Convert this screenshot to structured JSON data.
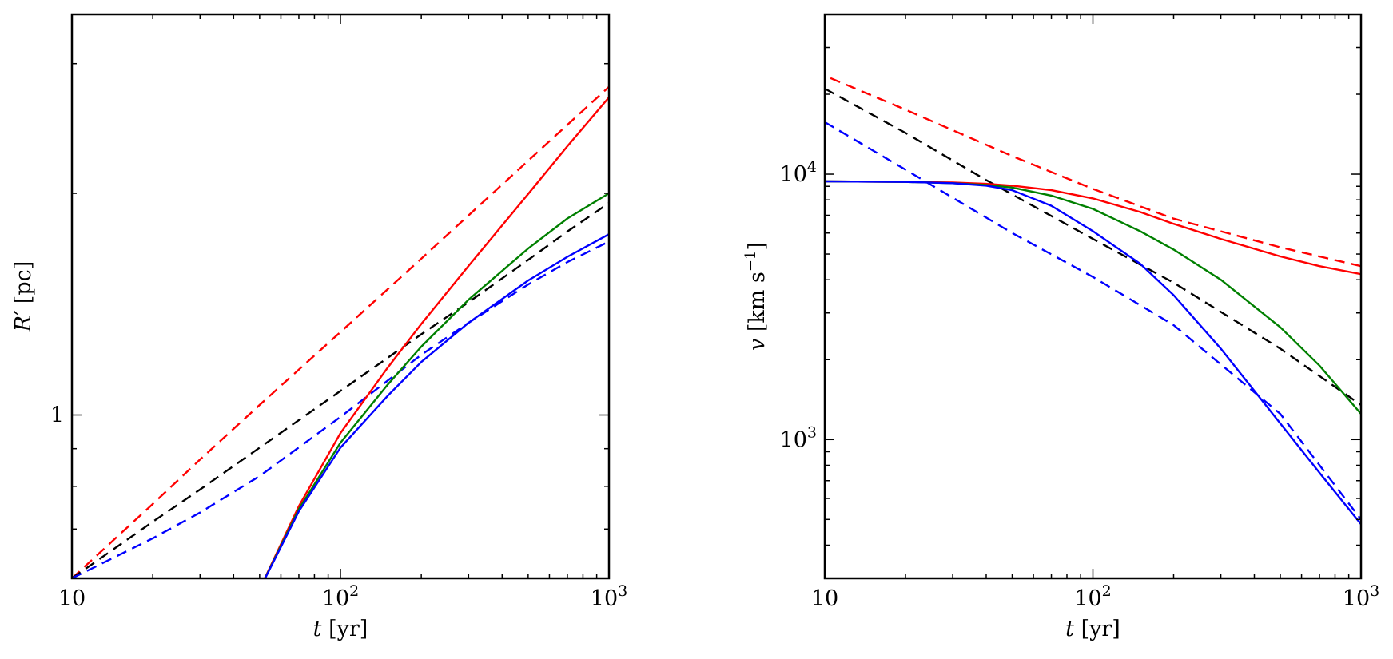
{
  "chart_data": [
    {
      "type": "line",
      "id": "left",
      "xscale": "log",
      "yscale": "log",
      "xlim": [
        10,
        1000
      ],
      "ylim": [
        0.6,
        3.5
      ],
      "xlabel": {
        "var": "t",
        "unit": "[yr]"
      },
      "ylabel": {
        "var": "R′",
        "unit": "[pc]"
      },
      "xticks": [
        {
          "v": 10,
          "base": "10",
          "exp": ""
        },
        {
          "v": 100,
          "base": "10",
          "exp": "2"
        },
        {
          "v": 1000,
          "base": "10",
          "exp": "3"
        }
      ],
      "yticks": [
        {
          "v": 1,
          "base": "1",
          "exp": ""
        }
      ],
      "series": [
        {
          "name": "red dashed",
          "color": "#ff0000",
          "dash": true,
          "x": [
            10,
            20,
            30,
            50,
            100,
            200,
            300,
            500,
            700,
            1000
          ],
          "y": [
            0.6,
            0.757,
            0.87,
            1.032,
            1.296,
            1.63,
            1.867,
            2.215,
            2.478,
            2.79
          ]
        },
        {
          "name": "black dashed",
          "color": "#000000",
          "dash": true,
          "x": [
            10,
            20,
            30,
            50,
            100,
            200,
            300,
            500,
            700,
            1000
          ],
          "y": [
            0.6,
            0.716,
            0.792,
            0.903,
            1.078,
            1.287,
            1.423,
            1.624,
            1.775,
            1.94
          ]
        },
        {
          "name": "blue dashed",
          "color": "#0000ff",
          "dash": true,
          "x": [
            10,
            20,
            30,
            50,
            100,
            200,
            300,
            500,
            700,
            1000
          ],
          "y": [
            0.6,
            0.68,
            0.737,
            0.826,
            0.994,
            1.207,
            1.334,
            1.504,
            1.613,
            1.72
          ]
        },
        {
          "name": "red solid",
          "color": "#ff0000",
          "dash": false,
          "x": [
            50,
            70,
            100,
            150,
            200,
            300,
            500,
            700,
            1000
          ],
          "y": [
            0.58,
            0.752,
            0.945,
            1.16,
            1.329,
            1.594,
            1.996,
            2.318,
            2.7
          ]
        },
        {
          "name": "green solid",
          "color": "#008000",
          "dash": false,
          "x": [
            50,
            70,
            100,
            150,
            200,
            300,
            500,
            700,
            1000
          ],
          "y": [
            0.58,
            0.745,
            0.917,
            1.1,
            1.238,
            1.434,
            1.683,
            1.849,
            2.0
          ]
        },
        {
          "name": "blue solid",
          "color": "#0000ff",
          "dash": false,
          "x": [
            50,
            70,
            100,
            150,
            200,
            300,
            500,
            700,
            1000
          ],
          "y": [
            0.58,
            0.74,
            0.903,
            1.062,
            1.18,
            1.334,
            1.523,
            1.64,
            1.76
          ]
        }
      ]
    },
    {
      "type": "line",
      "id": "right",
      "xscale": "log",
      "yscale": "log",
      "xlim": [
        10,
        1000
      ],
      "ylim": [
        300,
        40000
      ],
      "xlabel": {
        "var": "t",
        "unit": "[yr]"
      },
      "ylabel": {
        "var": "v",
        "unit": "[km s",
        "unitexp": "−1",
        "unitend": "]"
      },
      "xticks": [
        {
          "v": 10,
          "base": "10",
          "exp": ""
        },
        {
          "v": 100,
          "base": "10",
          "exp": "2"
        },
        {
          "v": 1000,
          "base": "10",
          "exp": "3"
        }
      ],
      "yticks": [
        {
          "v": 1000,
          "base": "10",
          "exp": "3"
        },
        {
          "v": 10000,
          "base": "10",
          "exp": "4"
        }
      ],
      "series": [
        {
          "name": "red dashed",
          "color": "#ff0000",
          "dash": true,
          "x": [
            10.5,
            20,
            50,
            100,
            200,
            500,
            1000
          ],
          "y": [
            23000,
            17500,
            11700,
            8800,
            6800,
            5300,
            4500
          ]
        },
        {
          "name": "black dashed",
          "color": "#000000",
          "dash": true,
          "x": [
            10,
            20,
            40,
            100,
            200,
            500,
            1000
          ],
          "y": [
            21000,
            14300,
            9500,
            5700,
            3900,
            2200,
            1350
          ]
        },
        {
          "name": "blue dashed",
          "color": "#0000ff",
          "dash": true,
          "x": [
            10,
            20,
            50,
            100,
            200,
            500,
            1000
          ],
          "y": [
            15700,
            10400,
            6000,
            4100,
            2700,
            1250,
            500
          ]
        },
        {
          "name": "red solid",
          "color": "#ff0000",
          "dash": false,
          "x": [
            10,
            20,
            30,
            40,
            50,
            70,
            100,
            150,
            200,
            300,
            500,
            700,
            1000
          ],
          "y": [
            9400,
            9350,
            9300,
            9200,
            9050,
            8700,
            8100,
            7200,
            6500,
            5700,
            4900,
            4500,
            4200
          ]
        },
        {
          "name": "green solid",
          "color": "#008000",
          "dash": false,
          "x": [
            10,
            20,
            30,
            40,
            50,
            70,
            100,
            150,
            200,
            300,
            500,
            700,
            1000
          ],
          "y": [
            9400,
            9350,
            9250,
            9100,
            8900,
            8300,
            7400,
            6100,
            5200,
            4000,
            2650,
            1900,
            1250
          ]
        },
        {
          "name": "blue solid",
          "color": "#0000ff",
          "dash": false,
          "x": [
            10,
            20,
            30,
            40,
            50,
            70,
            100,
            150,
            200,
            300,
            500,
            700,
            1000
          ],
          "y": [
            9400,
            9350,
            9250,
            9050,
            8700,
            7600,
            6100,
            4600,
            3500,
            2200,
            1150,
            750,
            480
          ]
        }
      ]
    }
  ]
}
